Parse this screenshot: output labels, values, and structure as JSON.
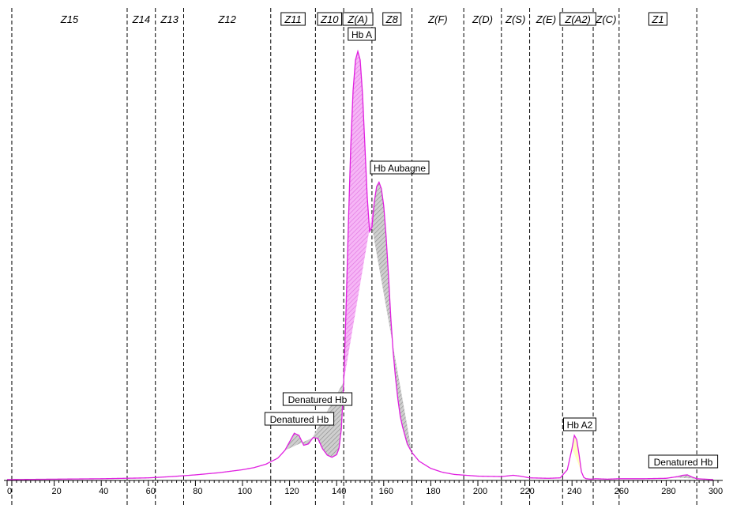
{
  "chart_data": {
    "type": "line",
    "x_axis": {
      "min": 0,
      "max": 302,
      "ticks": [
        0,
        20,
        40,
        60,
        80,
        100,
        120,
        140,
        160,
        180,
        200,
        220,
        240,
        260,
        280,
        300
      ]
    },
    "y_range": [
      0,
      100
    ],
    "zones": [
      {
        "name": "Z15",
        "start": 2,
        "end": 51,
        "boxed": false
      },
      {
        "name": "Z14",
        "start": 51,
        "end": 63,
        "boxed": false
      },
      {
        "name": "Z13",
        "start": 63,
        "end": 75,
        "boxed": false
      },
      {
        "name": "Z12",
        "start": 75,
        "end": 112,
        "boxed": false
      },
      {
        "name": "Z11",
        "start": 112,
        "end": 131,
        "boxed": true
      },
      {
        "name": "Z10",
        "start": 131,
        "end": 143,
        "boxed": true
      },
      {
        "name": "Z(A)",
        "start": 143,
        "end": 155,
        "boxed": true
      },
      {
        "name": "Z8",
        "start": 155,
        "end": 172,
        "boxed": true
      },
      {
        "name": "Z(F)",
        "start": 172,
        "end": 194,
        "boxed": false
      },
      {
        "name": "Z(D)",
        "start": 194,
        "end": 210,
        "boxed": false
      },
      {
        "name": "Z(S)",
        "start": 210,
        "end": 222,
        "boxed": false
      },
      {
        "name": "Z(E)",
        "start": 222,
        "end": 236,
        "boxed": false
      },
      {
        "name": "Z(A2)",
        "start": 236,
        "end": 249,
        "boxed": true
      },
      {
        "name": "Z(C)",
        "start": 249,
        "end": 260,
        "boxed": false
      },
      {
        "name": "Z1",
        "start": 260,
        "end": 293,
        "boxed": true
      }
    ],
    "series": [
      {
        "x": [
          0,
          20,
          40,
          50,
          60,
          70,
          80,
          90,
          100,
          105,
          110,
          115,
          118,
          120,
          122,
          124,
          126,
          128,
          130,
          132,
          134,
          136,
          138,
          140,
          141,
          142,
          143,
          144,
          145,
          146,
          147,
          148,
          149,
          150,
          151,
          152,
          153,
          154,
          155,
          156,
          157,
          158,
          159,
          160,
          161,
          162,
          163,
          164,
          165,
          166,
          167,
          168,
          170,
          172,
          175,
          180,
          185,
          190,
          200,
          210,
          215,
          218,
          222,
          230,
          235,
          238,
          240,
          241,
          242,
          243,
          244,
          245,
          246,
          248,
          250,
          255,
          260,
          270,
          280,
          285,
          287,
          289,
          291,
          293,
          300
        ],
        "y": [
          0.2,
          0.3,
          0.4,
          0.5,
          0.6,
          0.9,
          1.3,
          1.8,
          2.5,
          3.0,
          3.8,
          5.2,
          7.0,
          9.0,
          11.0,
          10.5,
          8.2,
          8.5,
          10.0,
          9.8,
          7.4,
          5.9,
          5.4,
          6.0,
          7.5,
          12.0,
          23.0,
          40.0,
          60.0,
          78.0,
          91.0,
          98.0,
          100.0,
          98.0,
          90.0,
          78.0,
          66.0,
          58.0,
          59.0,
          65.0,
          68.5,
          69.5,
          68.0,
          64.0,
          57.0,
          48.0,
          38.0,
          30.0,
          24.0,
          19.0,
          15.0,
          12.5,
          8.5,
          6.5,
          4.5,
          2.8,
          1.9,
          1.4,
          1.0,
          0.9,
          1.2,
          1.0,
          0.6,
          0.5,
          0.6,
          2.5,
          7.5,
          10.5,
          9.5,
          6.0,
          2.0,
          0.7,
          0.4,
          0.3,
          0.4,
          0.3,
          0.4,
          0.4,
          0.5,
          0.9,
          1.2,
          1.3,
          0.8,
          0.4,
          0.2
        ],
        "color": "#e020e0"
      }
    ],
    "peaks": [
      {
        "label": "Hb A",
        "start": 143,
        "end": 157,
        "apex_x": 150,
        "fill": "#f2a4f2"
      },
      {
        "label": "Hb Aubagne",
        "start": 155,
        "end": 172,
        "apex_x": 158,
        "fill": "#b3b3b3"
      },
      {
        "label": "Denatured Hb",
        "start": 118,
        "end": 130,
        "apex_x": 124,
        "fill": "#b3b3b3"
      },
      {
        "label": "Denatured Hb",
        "start": 129,
        "end": 143,
        "apex_x": 132,
        "fill": "#b3b3b3"
      },
      {
        "label": "Hb A2",
        "start": 240,
        "end": 245,
        "apex_x": 243,
        "fill": "#ffffc0"
      },
      {
        "label": "Denatured Hb",
        "start": 283,
        "end": 293,
        "apex_x": 289,
        "fill": "#b3b3b3"
      }
    ],
    "title": "",
    "xlabel": "",
    "ylabel": ""
  }
}
